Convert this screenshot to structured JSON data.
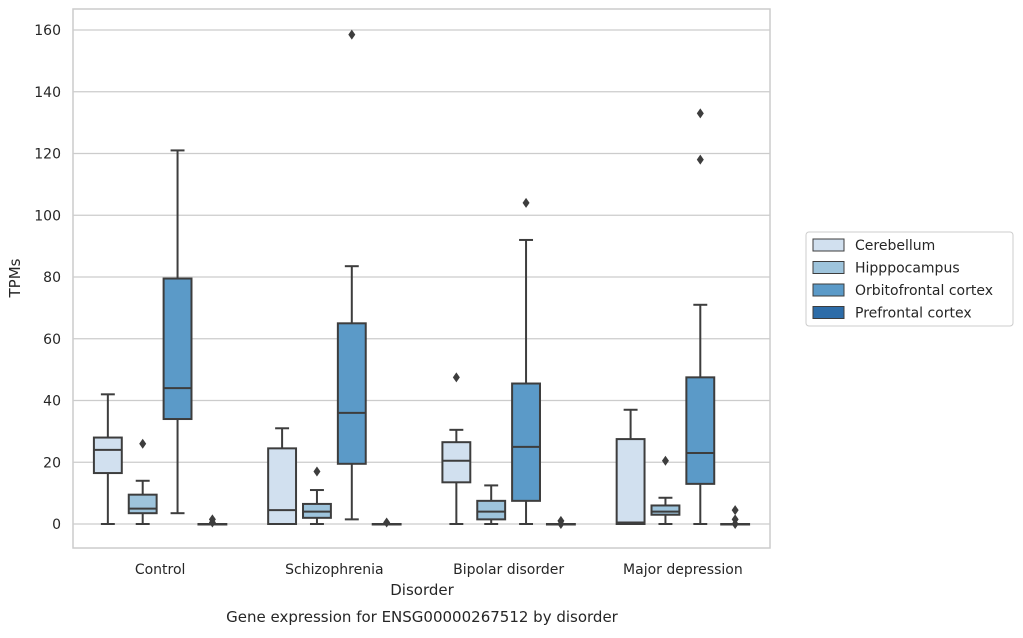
{
  "chart_data": {
    "type": "boxplot",
    "caption": "Gene expression for ENSG00000267512 by disorder",
    "xlabel": "Disorder",
    "ylabel": "TPMs",
    "ylim": [
      -8,
      166
    ],
    "yticks": [
      0,
      20,
      40,
      60,
      80,
      100,
      120,
      140,
      160
    ],
    "grid": "horizontal",
    "legend_position": "right",
    "categories": [
      "Control",
      "Schizophrenia",
      "Bipolar disorder",
      "Major depression"
    ],
    "series": [
      {
        "name": "Cerebellum",
        "color": "#d1e0ef",
        "boxes": [
          {
            "whisker_low": 0,
            "q1": 16.5,
            "median": 24,
            "q3": 28,
            "whisker_high": 42,
            "outliers": []
          },
          {
            "whisker_low": 0,
            "q1": 0,
            "median": 4.5,
            "q3": 24.5,
            "whisker_high": 31,
            "outliers": []
          },
          {
            "whisker_low": 0,
            "q1": 13.5,
            "median": 20.5,
            "q3": 26.5,
            "whisker_high": 30.5,
            "outliers": [
              47.5
            ]
          },
          {
            "whisker_low": 0,
            "q1": 0,
            "median": 0.5,
            "q3": 27.5,
            "whisker_high": 37,
            "outliers": []
          }
        ]
      },
      {
        "name": "Hipppocampus",
        "color": "#9ec4dc",
        "boxes": [
          {
            "whisker_low": 0,
            "q1": 3.5,
            "median": 5,
            "q3": 9.5,
            "whisker_high": 14,
            "outliers": [
              26
            ]
          },
          {
            "whisker_low": 0,
            "q1": 2,
            "median": 4,
            "q3": 6.5,
            "whisker_high": 11,
            "outliers": [
              17
            ]
          },
          {
            "whisker_low": 0,
            "q1": 1.5,
            "median": 4,
            "q3": 7.5,
            "whisker_high": 12.5,
            "outliers": []
          },
          {
            "whisker_low": 0,
            "q1": 3,
            "median": 4,
            "q3": 6,
            "whisker_high": 8.5,
            "outliers": [
              20.5
            ]
          }
        ]
      },
      {
        "name": "Orbitofrontal cortex",
        "color": "#5b9ac8",
        "boxes": [
          {
            "whisker_low": 3.5,
            "q1": 34,
            "median": 44,
            "q3": 79.5,
            "whisker_high": 121,
            "outliers": []
          },
          {
            "whisker_low": 1.5,
            "q1": 19.5,
            "median": 36,
            "q3": 65,
            "whisker_high": 83.5,
            "outliers": [
              158.5
            ]
          },
          {
            "whisker_low": 0,
            "q1": 7.5,
            "median": 25,
            "q3": 45.5,
            "whisker_high": 92,
            "outliers": [
              104
            ]
          },
          {
            "whisker_low": 0,
            "q1": 13,
            "median": 23,
            "q3": 47.5,
            "whisker_high": 71,
            "outliers": [
              133,
              118
            ]
          }
        ]
      },
      {
        "name": "Prefrontal cortex",
        "color": "#2d6ca8",
        "boxes": [
          {
            "whisker_low": 0,
            "q1": 0,
            "median": 0,
            "q3": 0,
            "whisker_high": 0,
            "outliers": [
              1.5,
              0.5
            ]
          },
          {
            "whisker_low": 0,
            "q1": 0,
            "median": 0,
            "q3": 0,
            "whisker_high": 0,
            "outliers": [
              0.5
            ]
          },
          {
            "whisker_low": 0,
            "q1": 0,
            "median": 0,
            "q3": 0,
            "whisker_high": 0,
            "outliers": [
              1,
              0
            ]
          },
          {
            "whisker_low": 0,
            "q1": 0,
            "median": 0,
            "q3": 0,
            "whisker_high": 0,
            "outliers": [
              4.5,
              1.5,
              0
            ]
          }
        ]
      }
    ]
  }
}
